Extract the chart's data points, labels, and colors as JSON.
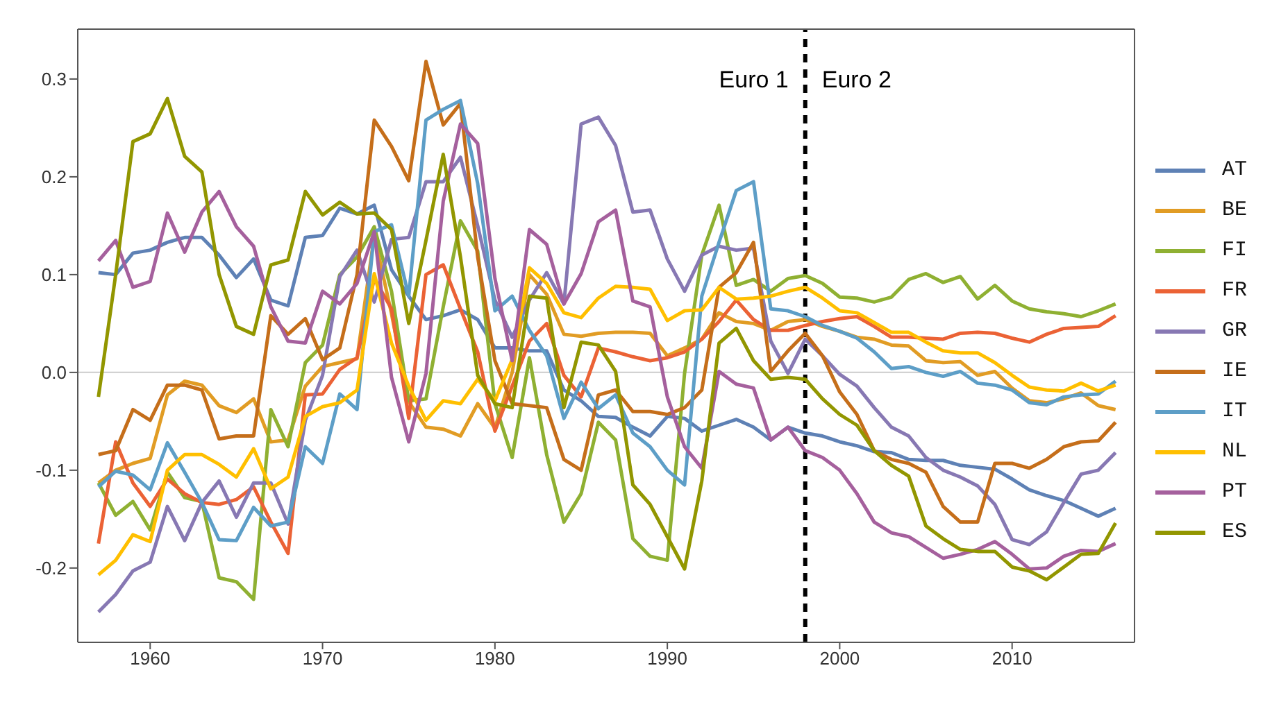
{
  "chart_data": {
    "type": "line",
    "x": [
      1957,
      1958,
      1959,
      1960,
      1961,
      1962,
      1963,
      1964,
      1965,
      1966,
      1967,
      1968,
      1969,
      1970,
      1971,
      1972,
      1973,
      1974,
      1975,
      1976,
      1977,
      1978,
      1979,
      1980,
      1981,
      1982,
      1983,
      1984,
      1985,
      1986,
      1987,
      1988,
      1989,
      1990,
      1991,
      1992,
      1993,
      1994,
      1995,
      1996,
      1997,
      1998,
      1999,
      2000,
      2001,
      2002,
      2003,
      2004,
      2005,
      2006,
      2007,
      2008,
      2009,
      2010,
      2011,
      2012,
      2013,
      2014,
      2015,
      2016
    ],
    "series": [
      {
        "name": "AT",
        "color": "#5e81b5",
        "values": [
          0.102,
          0.1,
          0.122,
          0.125,
          0.133,
          0.138,
          0.138,
          0.12,
          0.097,
          0.116,
          0.074,
          0.068,
          0.138,
          0.14,
          0.168,
          0.162,
          0.171,
          0.105,
          0.078,
          0.054,
          0.058,
          0.064,
          0.054,
          0.025,
          0.025,
          0.022,
          0.022,
          -0.018,
          -0.029,
          -0.045,
          -0.046,
          -0.056,
          -0.065,
          -0.045,
          -0.047,
          -0.06,
          -0.054,
          -0.048,
          -0.056,
          -0.069,
          -0.056,
          -0.062,
          -0.065,
          -0.071,
          -0.075,
          -0.081,
          -0.082,
          -0.089,
          -0.09,
          -0.09,
          -0.095,
          -0.097,
          -0.099,
          -0.109,
          -0.12,
          -0.126,
          -0.131,
          -0.139,
          -0.147,
          -0.139
        ]
      },
      {
        "name": "BE",
        "color": "#e19c24",
        "values": [
          -0.113,
          -0.1,
          -0.093,
          -0.088,
          -0.023,
          -0.009,
          -0.013,
          -0.034,
          -0.041,
          -0.027,
          -0.071,
          -0.069,
          -0.014,
          0.006,
          0.01,
          0.014,
          0.14,
          0.06,
          -0.03,
          -0.056,
          -0.058,
          -0.065,
          -0.032,
          -0.057,
          0.0,
          0.1,
          0.08,
          0.039,
          0.037,
          0.04,
          0.041,
          0.041,
          0.04,
          0.017,
          0.025,
          0.034,
          0.061,
          0.052,
          0.05,
          0.043,
          0.052,
          0.054,
          0.047,
          0.042,
          0.036,
          0.034,
          0.028,
          0.027,
          0.012,
          0.01,
          0.011,
          -0.003,
          0.001,
          -0.016,
          -0.029,
          -0.031,
          -0.027,
          -0.021,
          -0.034,
          -0.038
        ]
      },
      {
        "name": "FI",
        "color": "#8fb032",
        "values": [
          -0.113,
          -0.146,
          -0.132,
          -0.161,
          -0.102,
          -0.128,
          -0.132,
          -0.21,
          -0.214,
          -0.232,
          -0.038,
          -0.076,
          0.01,
          0.028,
          0.1,
          0.118,
          0.149,
          0.083,
          -0.029,
          -0.027,
          0.067,
          0.155,
          0.124,
          -0.032,
          -0.087,
          0.015,
          -0.084,
          -0.153,
          -0.124,
          -0.051,
          -0.069,
          -0.17,
          -0.188,
          -0.192,
          -0.001,
          0.12,
          0.171,
          0.089,
          0.095,
          0.083,
          0.096,
          0.099,
          0.091,
          0.077,
          0.076,
          0.072,
          0.077,
          0.095,
          0.101,
          0.092,
          0.098,
          0.075,
          0.089,
          0.073,
          0.065,
          0.062,
          0.06,
          0.057,
          0.063,
          0.07
        ]
      },
      {
        "name": "FR",
        "color": "#eb6235",
        "values": [
          -0.175,
          -0.071,
          -0.113,
          -0.137,
          -0.109,
          -0.124,
          -0.133,
          -0.135,
          -0.13,
          -0.117,
          -0.153,
          -0.185,
          -0.023,
          -0.022,
          0.003,
          0.015,
          0.096,
          0.065,
          -0.047,
          0.1,
          0.11,
          0.065,
          0.021,
          -0.06,
          -0.014,
          0.032,
          0.05,
          -0.003,
          -0.025,
          0.025,
          0.021,
          0.016,
          0.012,
          0.015,
          0.021,
          0.034,
          0.052,
          0.074,
          0.054,
          0.043,
          0.043,
          0.048,
          0.052,
          0.055,
          0.057,
          0.047,
          0.036,
          0.036,
          0.035,
          0.034,
          0.04,
          0.041,
          0.04,
          0.035,
          0.031,
          0.039,
          0.045,
          0.046,
          0.047,
          0.058
        ]
      },
      {
        "name": "GR",
        "color": "#8778b3",
        "values": [
          -0.245,
          -0.227,
          -0.203,
          -0.194,
          -0.137,
          -0.172,
          -0.133,
          -0.111,
          -0.148,
          -0.113,
          -0.113,
          -0.155,
          -0.049,
          -0.003,
          0.098,
          0.125,
          0.072,
          0.136,
          0.138,
          0.195,
          0.195,
          0.22,
          0.15,
          0.074,
          0.036,
          0.074,
          0.102,
          0.07,
          0.254,
          0.261,
          0.232,
          0.164,
          0.166,
          0.116,
          0.083,
          0.12,
          0.129,
          0.125,
          0.127,
          0.032,
          -0.001,
          0.034,
          0.017,
          -0.002,
          -0.014,
          -0.036,
          -0.056,
          -0.065,
          -0.087,
          -0.1,
          -0.107,
          -0.116,
          -0.135,
          -0.171,
          -0.176,
          -0.163,
          -0.133,
          -0.104,
          -0.1,
          -0.082
        ]
      },
      {
        "name": "IE",
        "color": "#c56e1a",
        "values": [
          -0.084,
          -0.08,
          -0.038,
          -0.049,
          -0.013,
          -0.013,
          -0.018,
          -0.068,
          -0.065,
          -0.065,
          0.058,
          0.039,
          0.055,
          0.013,
          0.025,
          0.1,
          0.258,
          0.231,
          0.196,
          0.318,
          0.253,
          0.275,
          0.118,
          0.012,
          -0.032,
          -0.034,
          -0.036,
          -0.089,
          -0.1,
          -0.023,
          -0.018,
          -0.04,
          -0.04,
          -0.043,
          -0.036,
          -0.018,
          0.087,
          0.102,
          0.133,
          0.001,
          0.022,
          0.04,
          0.017,
          -0.02,
          -0.043,
          -0.08,
          -0.089,
          -0.093,
          -0.102,
          -0.137,
          -0.153,
          -0.153,
          -0.093,
          -0.093,
          -0.098,
          -0.089,
          -0.076,
          -0.071,
          -0.07,
          -0.051
        ]
      },
      {
        "name": "IT",
        "color": "#5d9ec7",
        "values": [
          -0.117,
          -0.101,
          -0.105,
          -0.12,
          -0.072,
          -0.102,
          -0.133,
          -0.171,
          -0.172,
          -0.138,
          -0.157,
          -0.153,
          -0.076,
          -0.093,
          -0.022,
          -0.038,
          0.144,
          0.151,
          0.078,
          0.258,
          0.269,
          0.278,
          0.193,
          0.063,
          0.078,
          0.043,
          0.017,
          -0.047,
          -0.01,
          -0.037,
          -0.023,
          -0.062,
          -0.076,
          -0.1,
          -0.115,
          0.078,
          0.133,
          0.186,
          0.195,
          0.065,
          0.063,
          0.057,
          0.048,
          0.042,
          0.035,
          0.021,
          0.004,
          0.006,
          0.0,
          -0.004,
          0.001,
          -0.011,
          -0.013,
          -0.018,
          -0.031,
          -0.033,
          -0.025,
          -0.023,
          -0.022,
          -0.009
        ]
      },
      {
        "name": "NL",
        "color": "#ffbf00",
        "values": [
          -0.207,
          -0.192,
          -0.166,
          -0.173,
          -0.1,
          -0.084,
          -0.084,
          -0.094,
          -0.107,
          -0.078,
          -0.119,
          -0.107,
          -0.045,
          -0.035,
          -0.031,
          -0.018,
          0.101,
          0.03,
          -0.014,
          -0.049,
          -0.029,
          -0.032,
          -0.007,
          -0.029,
          0.013,
          0.107,
          0.091,
          0.061,
          0.056,
          0.076,
          0.088,
          0.087,
          0.085,
          0.053,
          0.063,
          0.064,
          0.087,
          0.075,
          0.076,
          0.078,
          0.083,
          0.087,
          0.076,
          0.063,
          0.061,
          0.051,
          0.041,
          0.041,
          0.031,
          0.022,
          0.02,
          0.02,
          0.01,
          -0.003,
          -0.015,
          -0.018,
          -0.019,
          -0.011,
          -0.019,
          -0.013
        ]
      },
      {
        "name": "PT",
        "color": "#a5609d",
        "values": [
          0.114,
          0.135,
          0.087,
          0.093,
          0.163,
          0.123,
          0.164,
          0.185,
          0.149,
          0.129,
          0.067,
          0.032,
          0.03,
          0.083,
          0.07,
          0.091,
          0.144,
          -0.005,
          -0.071,
          -0.001,
          0.175,
          0.254,
          0.234,
          0.096,
          0.012,
          0.146,
          0.131,
          0.07,
          0.101,
          0.154,
          0.166,
          0.073,
          0.067,
          -0.025,
          -0.076,
          -0.098,
          0.001,
          -0.012,
          -0.016,
          -0.069,
          -0.056,
          -0.08,
          -0.087,
          -0.1,
          -0.124,
          -0.153,
          -0.164,
          -0.168,
          -0.179,
          -0.19,
          -0.186,
          -0.181,
          -0.173,
          -0.186,
          -0.201,
          -0.2,
          -0.188,
          -0.182,
          -0.183,
          -0.175
        ]
      },
      {
        "name": "ES",
        "color": "#929600",
        "values": [
          -0.025,
          0.1,
          0.236,
          0.244,
          0.28,
          0.221,
          0.205,
          0.1,
          0.047,
          0.039,
          0.11,
          0.115,
          0.185,
          0.161,
          0.174,
          0.162,
          0.163,
          0.146,
          0.05,
          0.135,
          0.223,
          0.118,
          -0.003,
          -0.032,
          -0.036,
          0.078,
          0.076,
          -0.036,
          0.031,
          0.028,
          0.001,
          -0.115,
          -0.135,
          -0.168,
          -0.201,
          -0.111,
          0.03,
          0.045,
          0.012,
          -0.007,
          -0.005,
          -0.007,
          -0.027,
          -0.043,
          -0.054,
          -0.08,
          -0.095,
          -0.106,
          -0.157,
          -0.17,
          -0.181,
          -0.183,
          -0.183,
          -0.199,
          -0.203,
          -0.212,
          -0.199,
          -0.186,
          -0.185,
          -0.154
        ]
      }
    ],
    "xlim": [
      1955.8,
      2017.1
    ],
    "xticks": [
      1960,
      1970,
      1980,
      1990,
      2000,
      2010
    ],
    "ylim": [
      -0.276,
      0.351
    ],
    "yticks": [
      -0.2,
      -0.1,
      {
        "value": 0,
        "label": "0.0"
      },
      0.1,
      0.2,
      0.3
    ],
    "ref_lines": [
      {
        "axis": "y",
        "value": 0,
        "color": "#cccccc",
        "line_style": "solid"
      },
      {
        "axis": "x",
        "value": 1998,
        "color": "#000000",
        "line_style": "dashed"
      }
    ],
    "annotations": [
      {
        "text": "Euro 1",
        "x": 1998,
        "y": 0.3
      },
      {
        "text": "Euro 2",
        "x": 1998,
        "y": 0.3
      }
    ],
    "legend": "right",
    "grid": false
  }
}
